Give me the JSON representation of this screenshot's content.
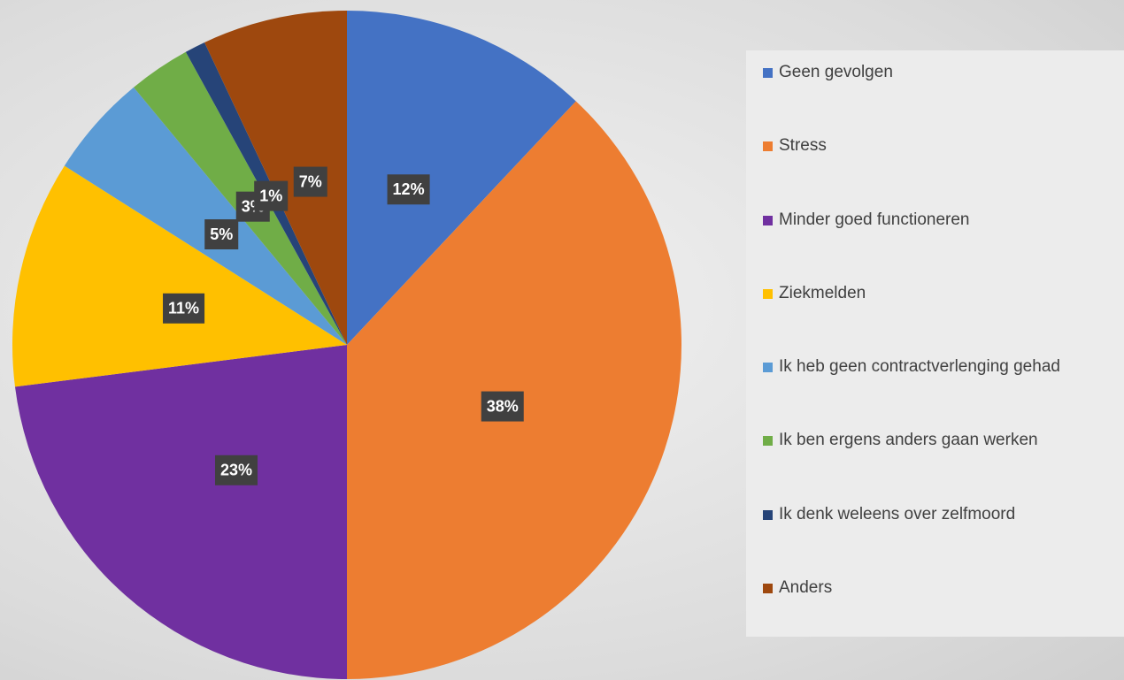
{
  "chart_data": {
    "type": "pie",
    "categories": [
      "Geen gevolgen",
      "Stress",
      "Minder goed functioneren",
      "Ziekmelden",
      "Ik heb geen contractverlenging gehad",
      "Ik ben ergens anders gaan werken",
      "Ik denk weleens over zelfmoord",
      "Anders"
    ],
    "values": [
      12,
      38,
      23,
      11,
      5,
      3,
      1,
      7
    ],
    "value_labels": [
      "12%",
      "38%",
      "23%",
      "11%",
      "5%",
      "3%",
      "1%",
      "7%"
    ],
    "colors": [
      "#4472c4",
      "#ed7d31",
      "#7030a0",
      "#ffc000",
      "#5b9bd5",
      "#70ad47",
      "#264478",
      "#9e480e"
    ],
    "legend": "right"
  }
}
